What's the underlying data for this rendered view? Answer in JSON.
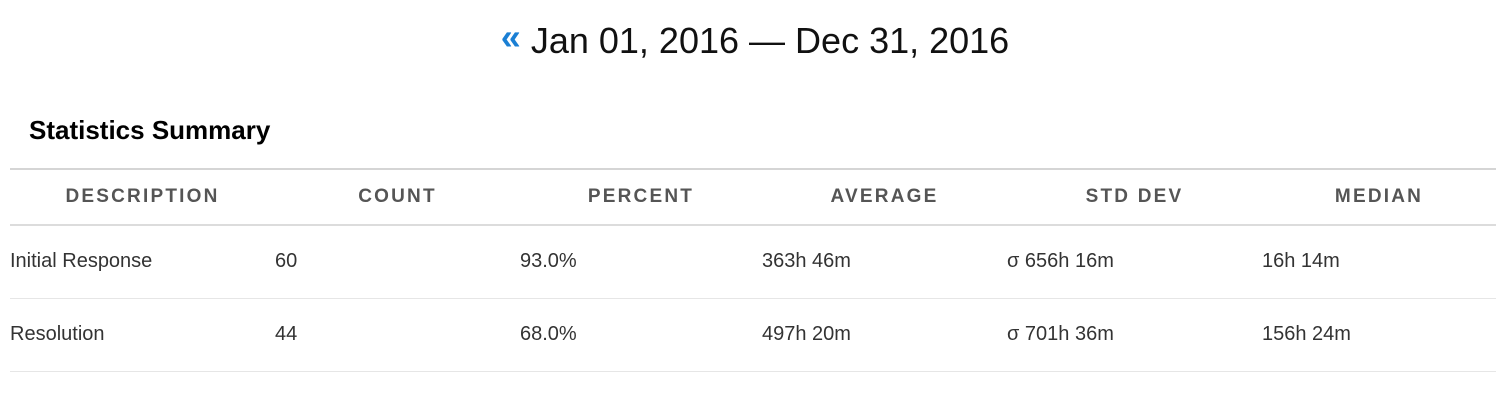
{
  "date_range": {
    "prev_icon": "double-chevron-left-icon",
    "prev_glyph": "«",
    "start": "Jan 01, 2016",
    "separator": "—",
    "end": "Dec 31, 2016"
  },
  "accent_color": "#1a7fd4",
  "summary": {
    "title": "Statistics Summary",
    "columns": [
      "DESCRIPTION",
      "COUNT",
      "PERCENT",
      "AVERAGE",
      "STD DEV",
      "MEDIAN"
    ],
    "rows": [
      {
        "description": "Initial Response",
        "count": "60",
        "percent": "93.0%",
        "average": "363h 46m",
        "std_dev": "σ 656h 16m",
        "median": "16h 14m"
      },
      {
        "description": "Resolution",
        "count": "44",
        "percent": "68.0%",
        "average": "497h 20m",
        "std_dev": "σ 701h 36m",
        "median": "156h 24m"
      }
    ]
  }
}
